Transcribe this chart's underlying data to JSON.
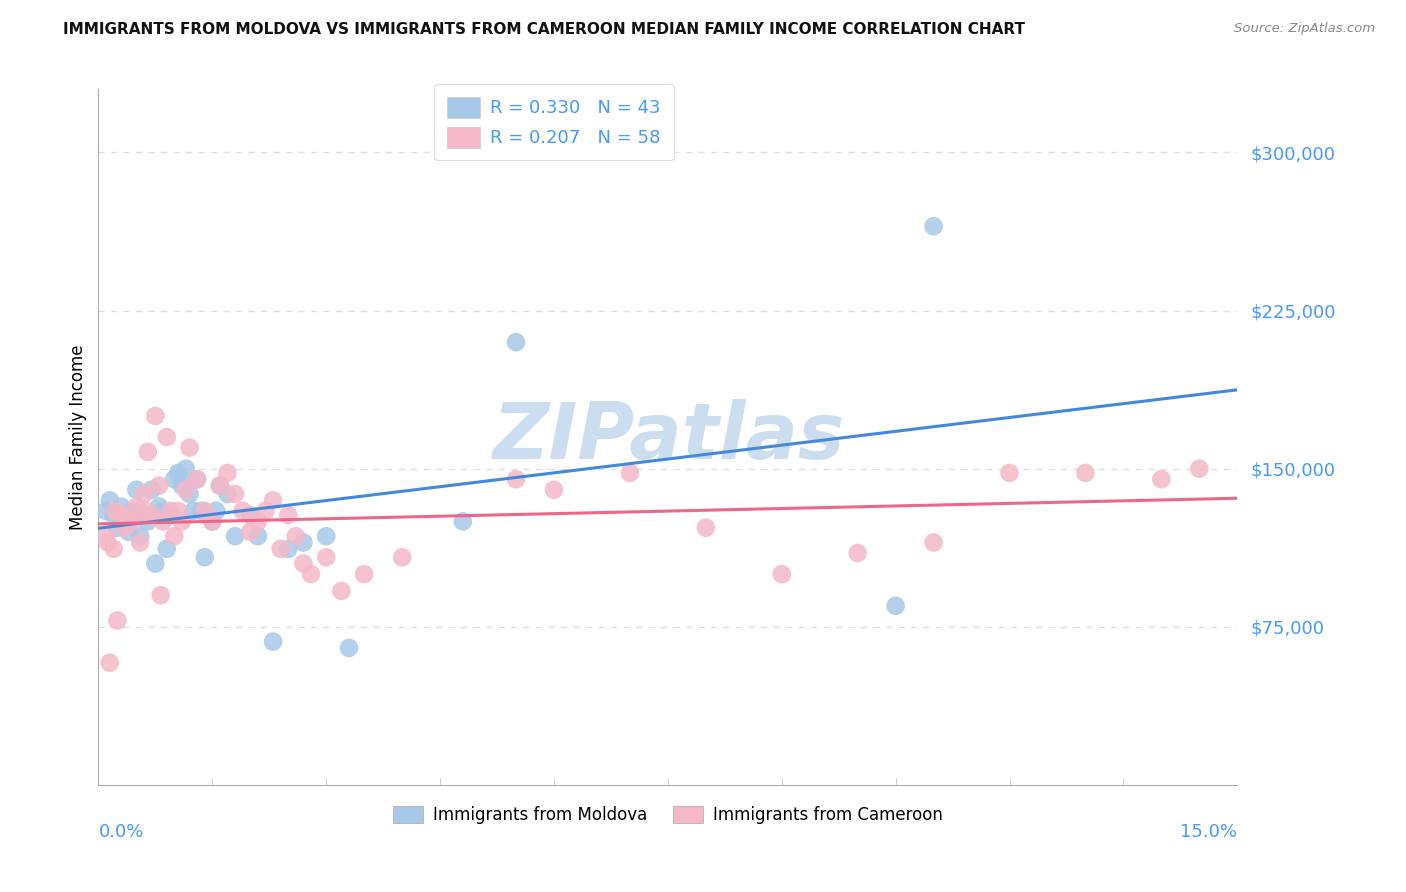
{
  "title": "IMMIGRANTS FROM MOLDOVA VS IMMIGRANTS FROM CAMEROON MEDIAN FAMILY INCOME CORRELATION CHART",
  "source": "Source: ZipAtlas.com",
  "ylabel": "Median Family Income",
  "xlim": [
    0.0,
    15.0
  ],
  "ylim": [
    0,
    330000
  ],
  "ytick_vals": [
    75000,
    150000,
    225000,
    300000
  ],
  "ytick_labels": [
    "$75,000",
    "$150,000",
    "$225,000",
    "$300,000"
  ],
  "moldova_color": "#a8c8e8",
  "cameroon_color": "#f4b8c8",
  "moldova_line_color": "#4488dd",
  "cameroon_line_color": "#ee6688",
  "ytick_color": "#4499ff",
  "xtick_color": "#4499ff",
  "legend_text_color": "#4499ff",
  "legend_label_moldova": "R = 0.330   N = 43",
  "legend_label_cameroon": "R = 0.207   N = 58",
  "bottom_legend_moldova": "Immigrants from Moldova",
  "bottom_legend_cameroon": "Immigrants from Cameroon",
  "moldova_x": [
    0.1,
    0.15,
    0.2,
    0.25,
    0.3,
    0.35,
    0.4,
    0.45,
    0.5,
    0.55,
    0.6,
    0.65,
    0.7,
    0.75,
    0.8,
    0.85,
    0.9,
    0.95,
    1.0,
    1.05,
    1.1,
    1.15,
    1.2,
    1.25,
    1.3,
    1.35,
    1.4,
    1.5,
    1.55,
    1.6,
    1.7,
    1.8,
    2.0,
    2.1,
    2.3,
    2.5,
    2.7,
    3.0,
    3.3,
    4.8,
    5.5,
    10.5,
    11.0
  ],
  "moldova_y": [
    130000,
    135000,
    128000,
    122000,
    132000,
    125000,
    120000,
    130000,
    140000,
    118000,
    128000,
    125000,
    140000,
    105000,
    132000,
    130000,
    112000,
    128000,
    145000,
    148000,
    142000,
    150000,
    138000,
    130000,
    145000,
    130000,
    108000,
    125000,
    130000,
    142000,
    138000,
    118000,
    128000,
    118000,
    68000,
    112000,
    115000,
    118000,
    65000,
    125000,
    210000,
    85000,
    265000
  ],
  "cameroon_x": [
    0.1,
    0.15,
    0.2,
    0.25,
    0.3,
    0.35,
    0.4,
    0.45,
    0.5,
    0.55,
    0.6,
    0.65,
    0.7,
    0.75,
    0.8,
    0.85,
    0.9,
    0.95,
    1.0,
    1.05,
    1.1,
    1.15,
    1.2,
    1.3,
    1.4,
    1.5,
    1.6,
    1.7,
    1.8,
    1.9,
    2.0,
    2.1,
    2.2,
    2.3,
    2.4,
    2.5,
    2.6,
    2.7,
    2.8,
    3.0,
    3.2,
    3.5,
    4.0,
    5.5,
    6.0,
    7.0,
    8.0,
    9.0,
    10.0,
    11.0,
    12.0,
    13.0,
    14.0,
    14.5,
    0.12,
    0.22,
    0.62,
    0.82
  ],
  "cameroon_y": [
    118000,
    58000,
    112000,
    78000,
    128000,
    122000,
    125000,
    125000,
    132000,
    115000,
    138000,
    158000,
    128000,
    175000,
    142000,
    125000,
    165000,
    130000,
    118000,
    130000,
    125000,
    140000,
    160000,
    145000,
    130000,
    125000,
    142000,
    148000,
    138000,
    130000,
    120000,
    125000,
    130000,
    135000,
    112000,
    128000,
    118000,
    105000,
    100000,
    108000,
    92000,
    100000,
    108000,
    145000,
    140000,
    148000,
    122000,
    100000,
    110000,
    115000,
    148000,
    148000,
    145000,
    150000,
    115000,
    130000,
    130000,
    90000
  ],
  "grid_color": "#dddddd",
  "background_color": "#ffffff",
  "watermark": "ZIPatlas",
  "watermark_color": "#ccddf0"
}
